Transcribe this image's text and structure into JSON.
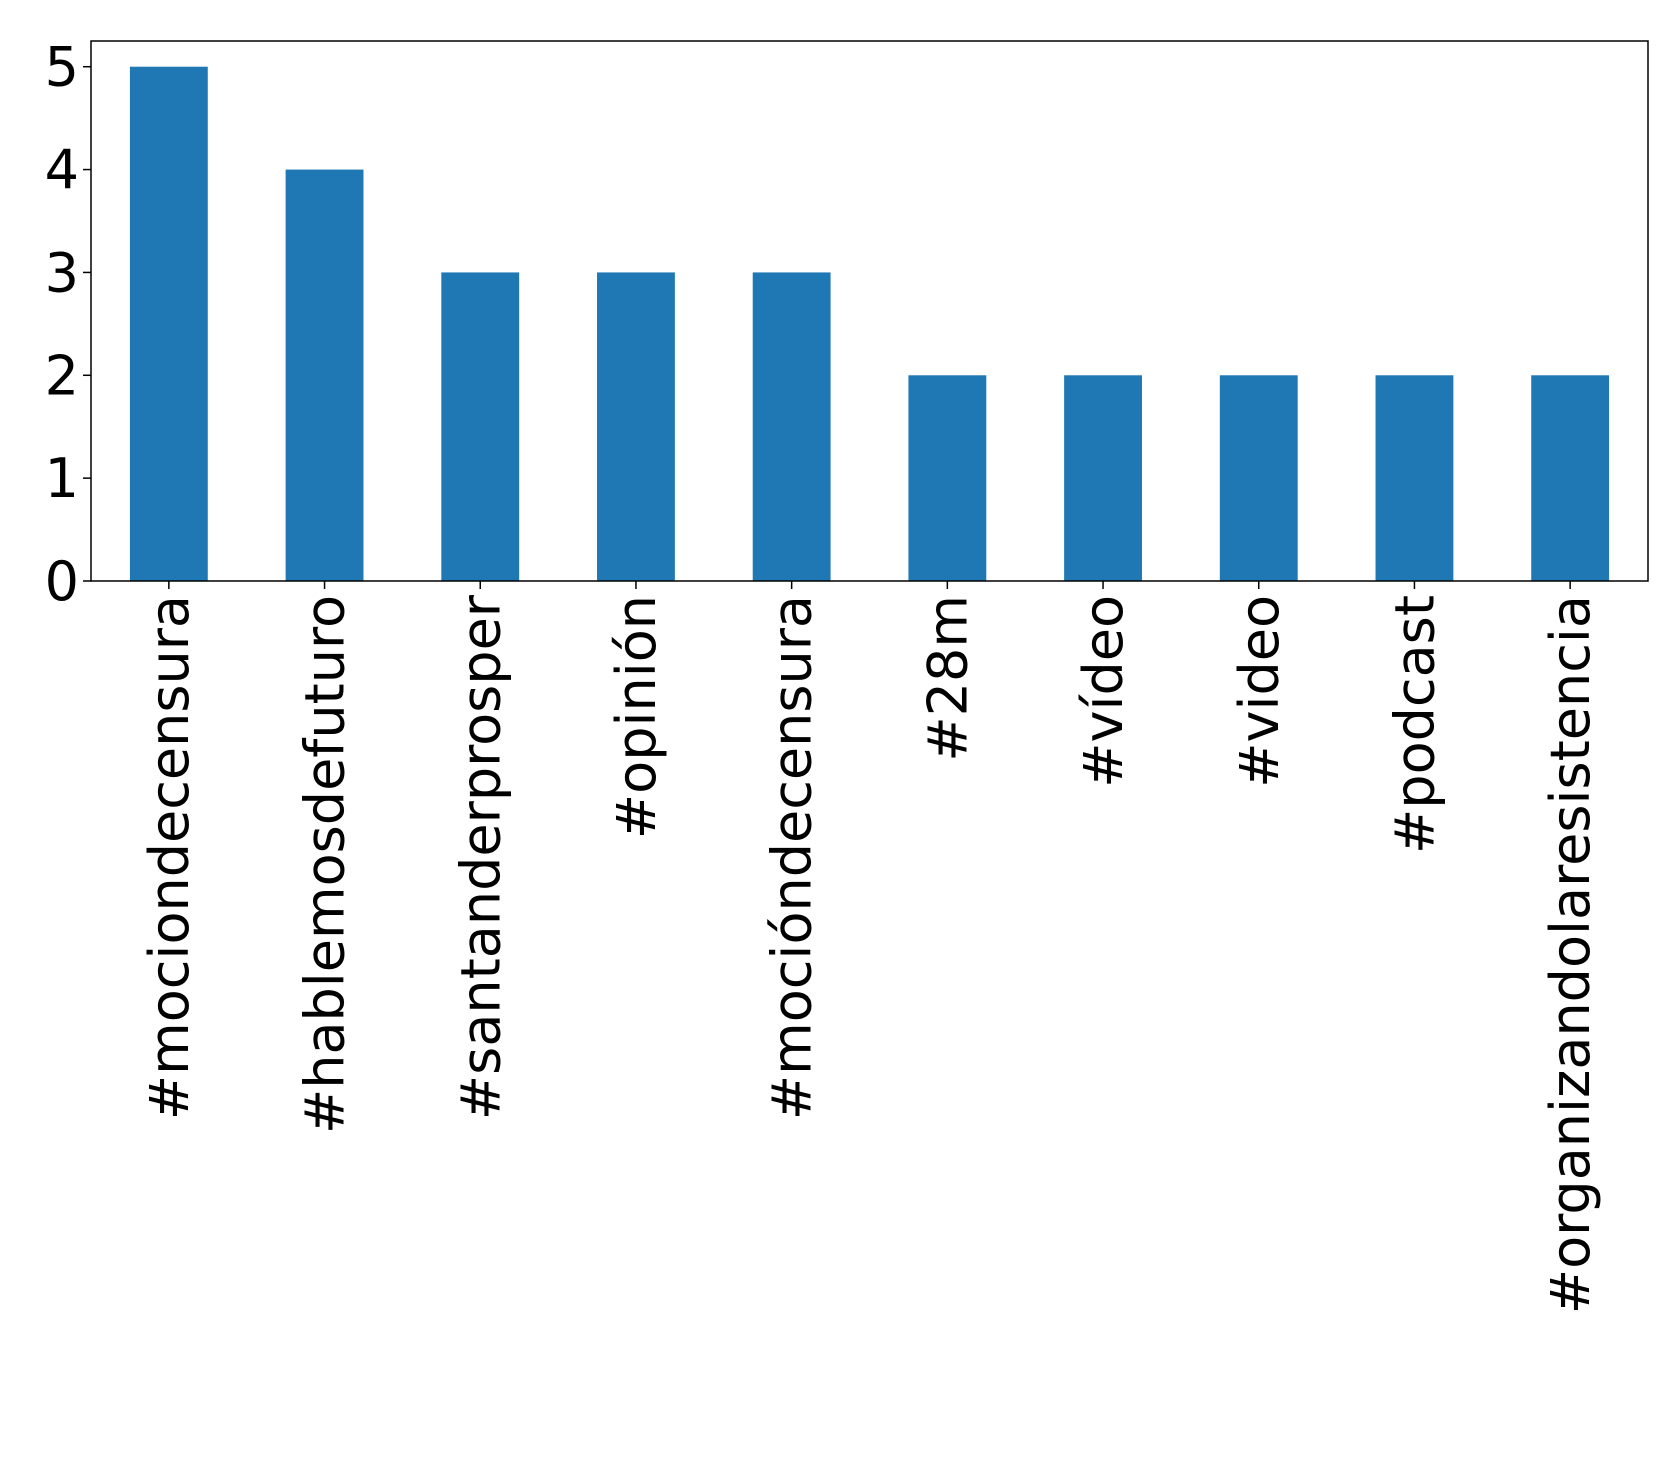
{
  "chart_data": {
    "type": "bar",
    "categories": [
      "#mociondecensura",
      "#hablemosdefuturo",
      "#santanderprosper",
      "#opinión",
      "#mocióndecensura",
      "#28m",
      "#vídeo",
      "#video",
      "#podcast",
      "#organizandolaresistencia"
    ],
    "values": [
      5,
      4,
      3,
      3,
      3,
      2,
      2,
      2,
      2,
      2
    ],
    "color": "#1f77b4",
    "ylim": [
      0,
      5.25
    ],
    "yticks": [
      0,
      1,
      2,
      3,
      4,
      5
    ],
    "grid": false
  }
}
